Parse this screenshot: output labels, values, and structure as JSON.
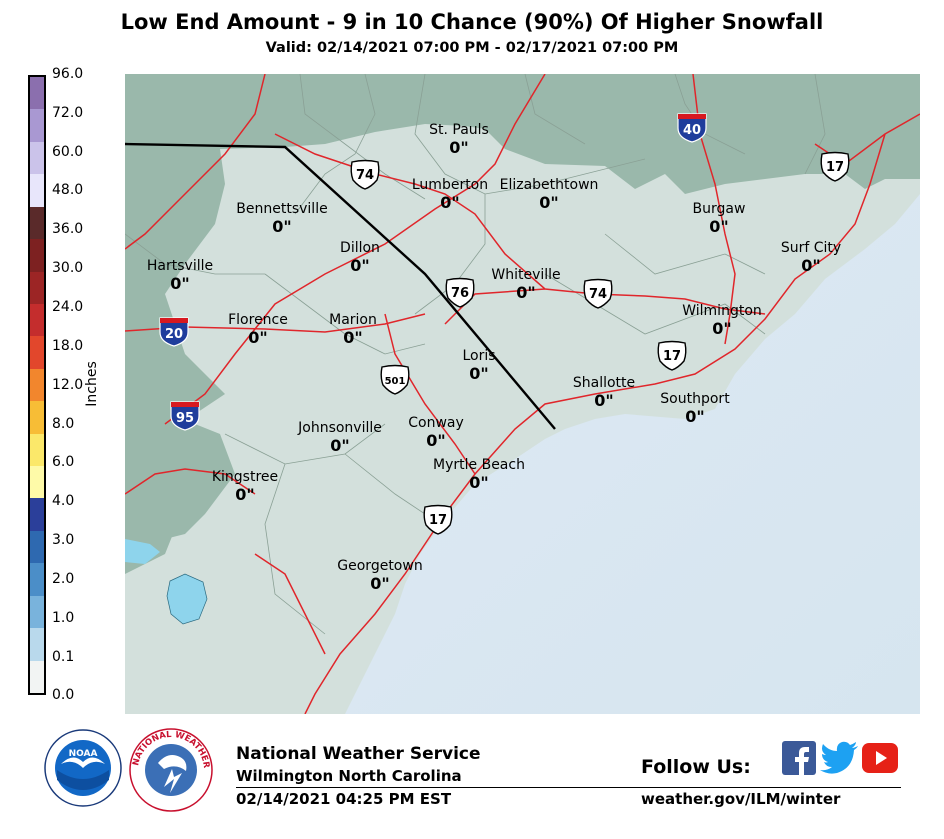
{
  "header": {
    "title": "Low End Amount - 9 in 10 Chance (90%) Of Higher Snowfall",
    "valid": "Valid: 02/14/2021 07:00 PM - 02/17/2021 07:00 PM"
  },
  "legend": {
    "unit_label": "Inches",
    "ticks": [
      "96.0",
      "72.0",
      "60.0",
      "48.0",
      "36.0",
      "30.0",
      "24.0",
      "18.0",
      "12.0",
      "8.0",
      "6.0",
      "4.0",
      "3.0",
      "2.0",
      "1.0",
      "0.1",
      "0.0"
    ],
    "colors": [
      "#8b6fae",
      "#a998d2",
      "#cbc3ea",
      "#e8e6fb",
      "#5a2a2a",
      "#7d2121",
      "#9c2525",
      "#c42d2d",
      "#e2472c",
      "#f2862d",
      "#f7bd36",
      "#fbe86a",
      "#fefaa8",
      "#2b3f9a",
      "#2e69b0",
      "#4b8ec8",
      "#79b3dc",
      "#b9d9ec",
      "#f2f4f3"
    ]
  },
  "map": {
    "colors": {
      "land_zero": "#d3e0dc",
      "land_outside": "#9ab8ab",
      "ocean": "#dce9f3",
      "water_inland": "#8ed4ec",
      "roads": "#e0262b",
      "boundary": "#000000"
    },
    "cities": [
      {
        "name": "St. Pauls",
        "value": "0\""
      },
      {
        "name": "Lumberton",
        "value": "0\""
      },
      {
        "name": "Elizabethtown",
        "value": "0\""
      },
      {
        "name": "Bennettsville",
        "value": "0\""
      },
      {
        "name": "Dillon",
        "value": "0\""
      },
      {
        "name": "Burgaw",
        "value": "0\""
      },
      {
        "name": "Surf City",
        "value": "0\""
      },
      {
        "name": "Hartsville",
        "value": "0\""
      },
      {
        "name": "Whiteville",
        "value": "0\""
      },
      {
        "name": "Florence",
        "value": "0\""
      },
      {
        "name": "Marion",
        "value": "0\""
      },
      {
        "name": "Wilmington",
        "value": "0\""
      },
      {
        "name": "Loris",
        "value": "0\""
      },
      {
        "name": "Shallotte",
        "value": "0\""
      },
      {
        "name": "Southport",
        "value": "0\""
      },
      {
        "name": "Conway",
        "value": "0\""
      },
      {
        "name": "Johnsonville",
        "value": "0\""
      },
      {
        "name": "Myrtle Beach",
        "value": "0\""
      },
      {
        "name": "Kingstree",
        "value": "0\""
      },
      {
        "name": "Georgetown",
        "value": "0\""
      }
    ],
    "shields": [
      {
        "type": "interstate",
        "number": "40"
      },
      {
        "type": "interstate",
        "number": "20"
      },
      {
        "type": "interstate",
        "number": "95"
      },
      {
        "type": "us",
        "number": "74"
      },
      {
        "type": "us",
        "number": "17"
      },
      {
        "type": "us",
        "number": "76"
      },
      {
        "type": "us",
        "number": "74"
      },
      {
        "type": "us",
        "number": "17"
      },
      {
        "type": "us",
        "number": "501"
      },
      {
        "type": "us",
        "number": "17"
      }
    ]
  },
  "footer": {
    "org": "National Weather Service",
    "office": "Wilmington North Carolina",
    "timestamp": "02/14/2021 04:25 PM EST",
    "follow": "Follow Us:",
    "url": "weather.gov/ILM/winter",
    "noaa_logo_text": "NOAA",
    "nws_logo_text": "NATIONAL WEATHER SERVICE"
  }
}
